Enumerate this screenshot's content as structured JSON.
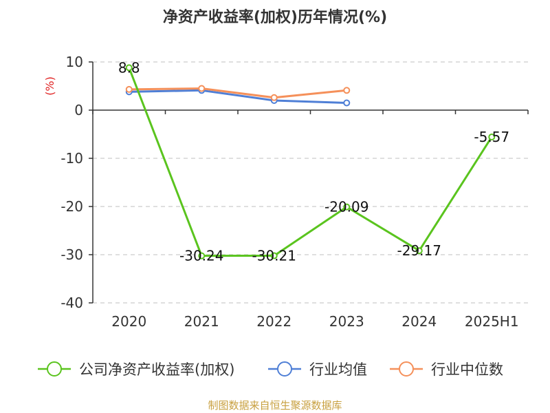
{
  "chart_data": {
    "type": "line",
    "title": "净资产收益率(加权)历年情况(%)",
    "unit": "(%)",
    "categories": [
      "2020",
      "2021",
      "2022",
      "2023",
      "2024",
      "2025H1"
    ],
    "ylim": [
      -40,
      10
    ],
    "yticks": [
      10,
      0,
      -10,
      -20,
      -30,
      -40
    ],
    "grid": true,
    "legend_position": "bottom",
    "series": [
      {
        "name": "公司净资产收益率(加权)",
        "color": "#5ac41e",
        "values": [
          8.8,
          -30.24,
          -30.21,
          -20.09,
          -29.17,
          -5.57
        ],
        "labels": [
          "8.8",
          "-30.24",
          "-30.21",
          "-20.09",
          "-29.17",
          "-5.57"
        ]
      },
      {
        "name": "行业均值",
        "color": "#4f7fd6",
        "values": [
          3.8,
          4.1,
          2.0,
          1.5,
          null,
          null
        ]
      },
      {
        "name": "行业中位数",
        "color": "#f5905a",
        "values": [
          4.3,
          4.5,
          2.6,
          4.1,
          null,
          null
        ]
      }
    ]
  },
  "footer": {
    "source": "制图数据来自恒生聚源数据库"
  }
}
